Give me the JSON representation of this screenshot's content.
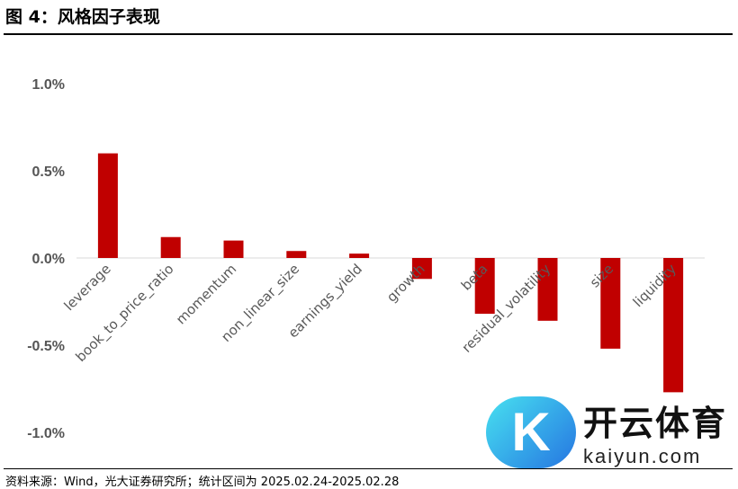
{
  "header": {
    "title": "图 4：风格因子表现"
  },
  "footer": {
    "source": "资料来源：Wind，光大证券研究所；统计区间为 2025.02.24-2025.02.28"
  },
  "watermark": {
    "cn": "开云体育",
    "en": "kaiyun.com",
    "logo": "K"
  },
  "chart_data": {
    "type": "bar",
    "title": "风格因子表现",
    "categories": [
      "leverage",
      "book_to_price_ratio",
      "momentum",
      "non_linear_size",
      "earnings_yield",
      "growth",
      "beta",
      "residual_volatility",
      "size",
      "liquidity"
    ],
    "values": [
      0.6,
      0.12,
      0.1,
      0.04,
      0.025,
      -0.12,
      -0.32,
      -0.36,
      -0.52,
      -0.77
    ],
    "unit": "%",
    "ylim": [
      -1.0,
      1.0
    ],
    "yticks": [
      1.0,
      0.5,
      0.0,
      -0.5,
      -1.0
    ],
    "ytick_labels": [
      "1.0%",
      "0.5%",
      "0.0%",
      "-0.5%",
      "-1.0%"
    ],
    "bar_color": "#C00000",
    "grid": false,
    "xlabel": "",
    "ylabel": ""
  }
}
